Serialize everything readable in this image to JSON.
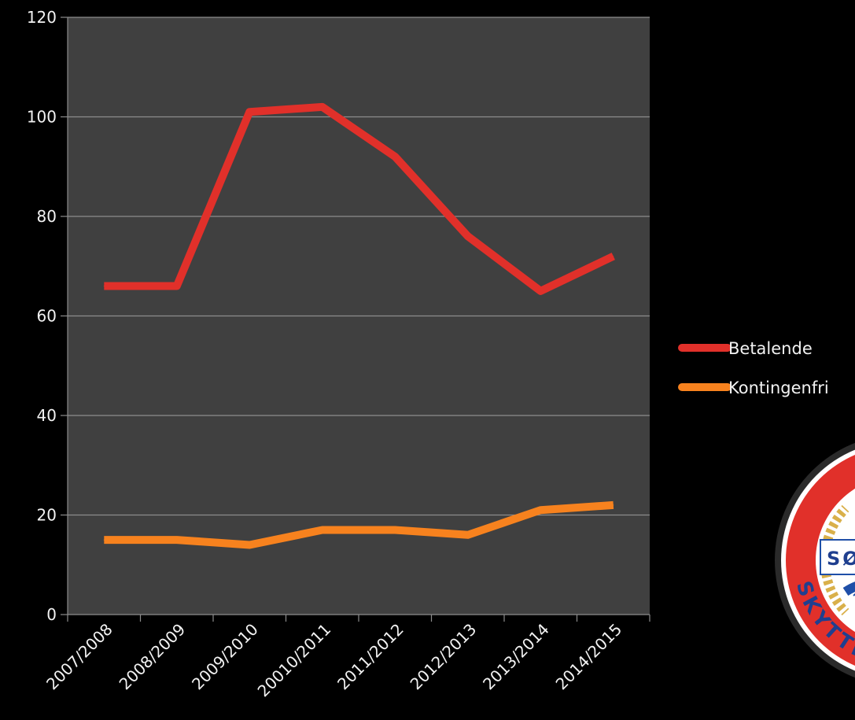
{
  "chart_data": {
    "type": "line",
    "title": "",
    "xlabel": "",
    "ylabel": "",
    "categories": [
      "2007/2008",
      "2008/2009",
      "2009/2010",
      "20010/2011",
      "2011/2012",
      "2012/2013",
      "2013/2014",
      "2014/2015"
    ],
    "series": [
      {
        "name": "Betalende",
        "color": "#e1302a",
        "values": [
          66,
          66,
          101,
          102,
          92,
          76,
          65,
          72
        ]
      },
      {
        "name": "Kontingenfri",
        "color": "#f7821e",
        "values": [
          15,
          15,
          14,
          17,
          17,
          16,
          21,
          22
        ]
      }
    ],
    "ylim": [
      0,
      120
    ],
    "yticks": [
      0,
      20,
      40,
      60,
      80,
      100,
      120
    ],
    "grid": true,
    "legend_position": "right",
    "plot_background": "#404040",
    "gridline_color": "#8c8c8c",
    "text_color": "#f2f2f2"
  },
  "logo": {
    "text": "SØL",
    "ring_text": "SKYTTE",
    "colors": [
      "#e1302a",
      "#1f4fa8",
      "#d9b04a",
      "#ffffff"
    ]
  }
}
